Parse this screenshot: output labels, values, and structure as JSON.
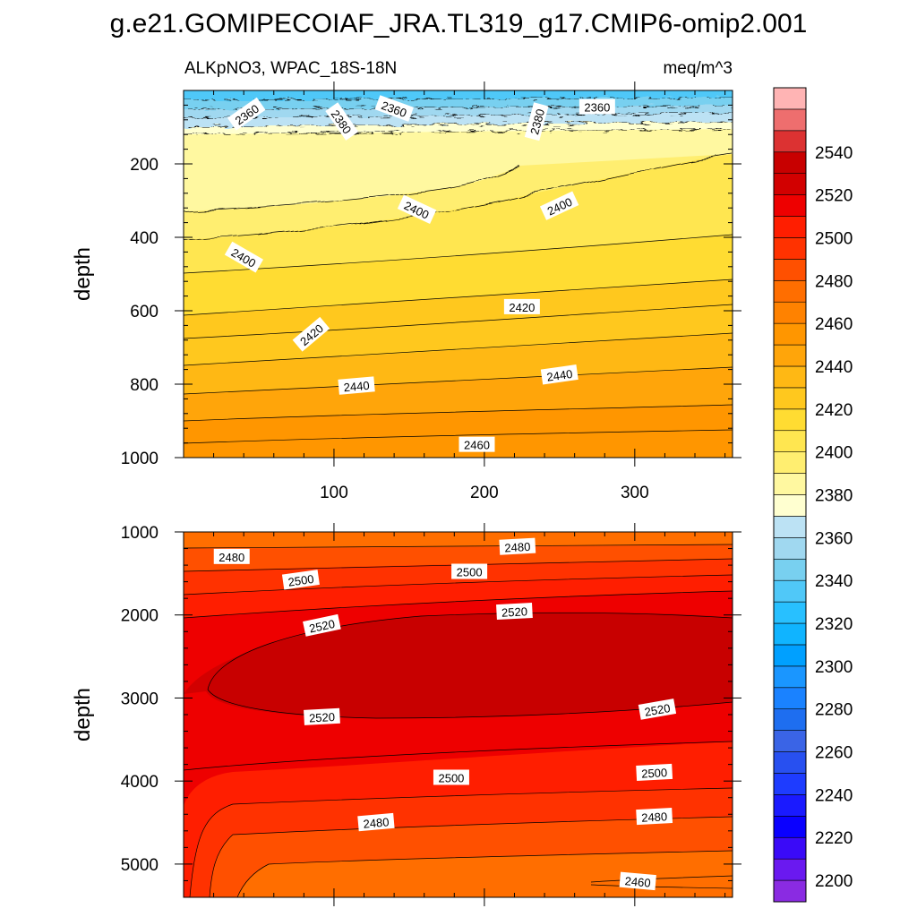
{
  "chart_data": {
    "type": "heatmap",
    "title": "g.e21.GOMIPECOIAF_JRA.TL319_g17.CMIP6-omip2.001",
    "subtitle_left": "ALKpNO3, WPAC_18S-18N",
    "subtitle_right": "meq/m^3",
    "colorbar": {
      "levels": [
        2190,
        2200,
        2210,
        2220,
        2230,
        2240,
        2250,
        2260,
        2270,
        2280,
        2290,
        2300,
        2310,
        2320,
        2330,
        2340,
        2350,
        2360,
        2370,
        2380,
        2390,
        2400,
        2410,
        2420,
        2430,
        2440,
        2450,
        2460,
        2470,
        2480,
        2490,
        2500,
        2510,
        2520,
        2530,
        2540,
        2550,
        2560
      ],
      "colors": [
        "#8a2be2",
        "#6a19f0",
        "#3a0af8",
        "#0a00ff",
        "#1a1aff",
        "#1e3cff",
        "#2850f0",
        "#3a64e6",
        "#1e6ef0",
        "#1a82ff",
        "#1a96ff",
        "#00a0ff",
        "#10b4ff",
        "#28c0ff",
        "#50c8f8",
        "#78d0f0",
        "#a0d8f0",
        "#bce2f4",
        "#ffffd0",
        "#fff8a0",
        "#ffee70",
        "#ffe650",
        "#ffdc32",
        "#ffc81e",
        "#ffb814",
        "#ffa50a",
        "#ff9600",
        "#ff8200",
        "#ff6e00",
        "#ff5000",
        "#ff3200",
        "#ff1e00",
        "#ee0000",
        "#d20000",
        "#c80000",
        "#dc3232",
        "#ee6e6e",
        "#ffb4b4"
      ],
      "tick_labels": [
        "2200",
        "2220",
        "2240",
        "2260",
        "2280",
        "2300",
        "2320",
        "2340",
        "2360",
        "2380",
        "2400",
        "2420",
        "2440",
        "2460",
        "2480",
        "2500",
        "2520",
        "2540"
      ]
    },
    "top_panel": {
      "xlabel": "",
      "ylabel": "depth",
      "xlim": [
        0,
        365
      ],
      "ylim": [
        1000,
        0
      ],
      "xticks": [
        100,
        200,
        300
      ],
      "ytick_labels": [
        "200",
        "400",
        "600",
        "800",
        "1000"
      ],
      "contour_labels": [
        {
          "text": "2360",
          "x": 42,
          "y": 65,
          "rot": -35
        },
        {
          "text": "2380",
          "x": 105,
          "y": 85,
          "rot": 55
        },
        {
          "text": "2360",
          "x": 140,
          "y": 50,
          "rot": 20
        },
        {
          "text": "2380",
          "x": 235,
          "y": 85,
          "rot": -75
        },
        {
          "text": "2360",
          "x": 275,
          "y": 45,
          "rot": 0
        },
        {
          "text": "2400",
          "x": 155,
          "y": 325,
          "rot": 25
        },
        {
          "text": "2400",
          "x": 250,
          "y": 315,
          "rot": -25
        },
        {
          "text": "2400",
          "x": 40,
          "y": 455,
          "rot": 30
        },
        {
          "text": "2420",
          "x": 225,
          "y": 590,
          "rot": 0
        },
        {
          "text": "2420",
          "x": 85,
          "y": 665,
          "rot": -40
        },
        {
          "text": "2440",
          "x": 250,
          "y": 775,
          "rot": -8
        },
        {
          "text": "2440",
          "x": 115,
          "y": 805,
          "rot": -5
        },
        {
          "text": "2460",
          "x": 195,
          "y": 965,
          "rot": 0
        }
      ]
    },
    "bottom_panel": {
      "xlabel": "",
      "ylabel": "depth",
      "xlim": [
        0,
        365
      ],
      "ylim": [
        5400,
        1000
      ],
      "ytick_labels": [
        "1000",
        "2000",
        "3000",
        "4000",
        "5000"
      ],
      "contour_labels": [
        {
          "text": "2480",
          "x": 32,
          "y": 1300,
          "rot": 0
        },
        {
          "text": "2500",
          "x": 78,
          "y": 1580,
          "rot": -8
        },
        {
          "text": "2480",
          "x": 222,
          "y": 1180,
          "rot": -3
        },
        {
          "text": "2500",
          "x": 190,
          "y": 1480,
          "rot": 0
        },
        {
          "text": "2520",
          "x": 92,
          "y": 2130,
          "rot": -12
        },
        {
          "text": "2520",
          "x": 220,
          "y": 1960,
          "rot": -3
        },
        {
          "text": "2520",
          "x": 92,
          "y": 3230,
          "rot": -3
        },
        {
          "text": "2520",
          "x": 315,
          "y": 3140,
          "rot": -10
        },
        {
          "text": "2500",
          "x": 178,
          "y": 3960,
          "rot": 0
        },
        {
          "text": "2500",
          "x": 313,
          "y": 3900,
          "rot": -3
        },
        {
          "text": "2480",
          "x": 128,
          "y": 4500,
          "rot": -5
        },
        {
          "text": "2480",
          "x": 313,
          "y": 4430,
          "rot": -3
        },
        {
          "text": "2460",
          "x": 302,
          "y": 5210,
          "rot": 5
        }
      ]
    }
  }
}
